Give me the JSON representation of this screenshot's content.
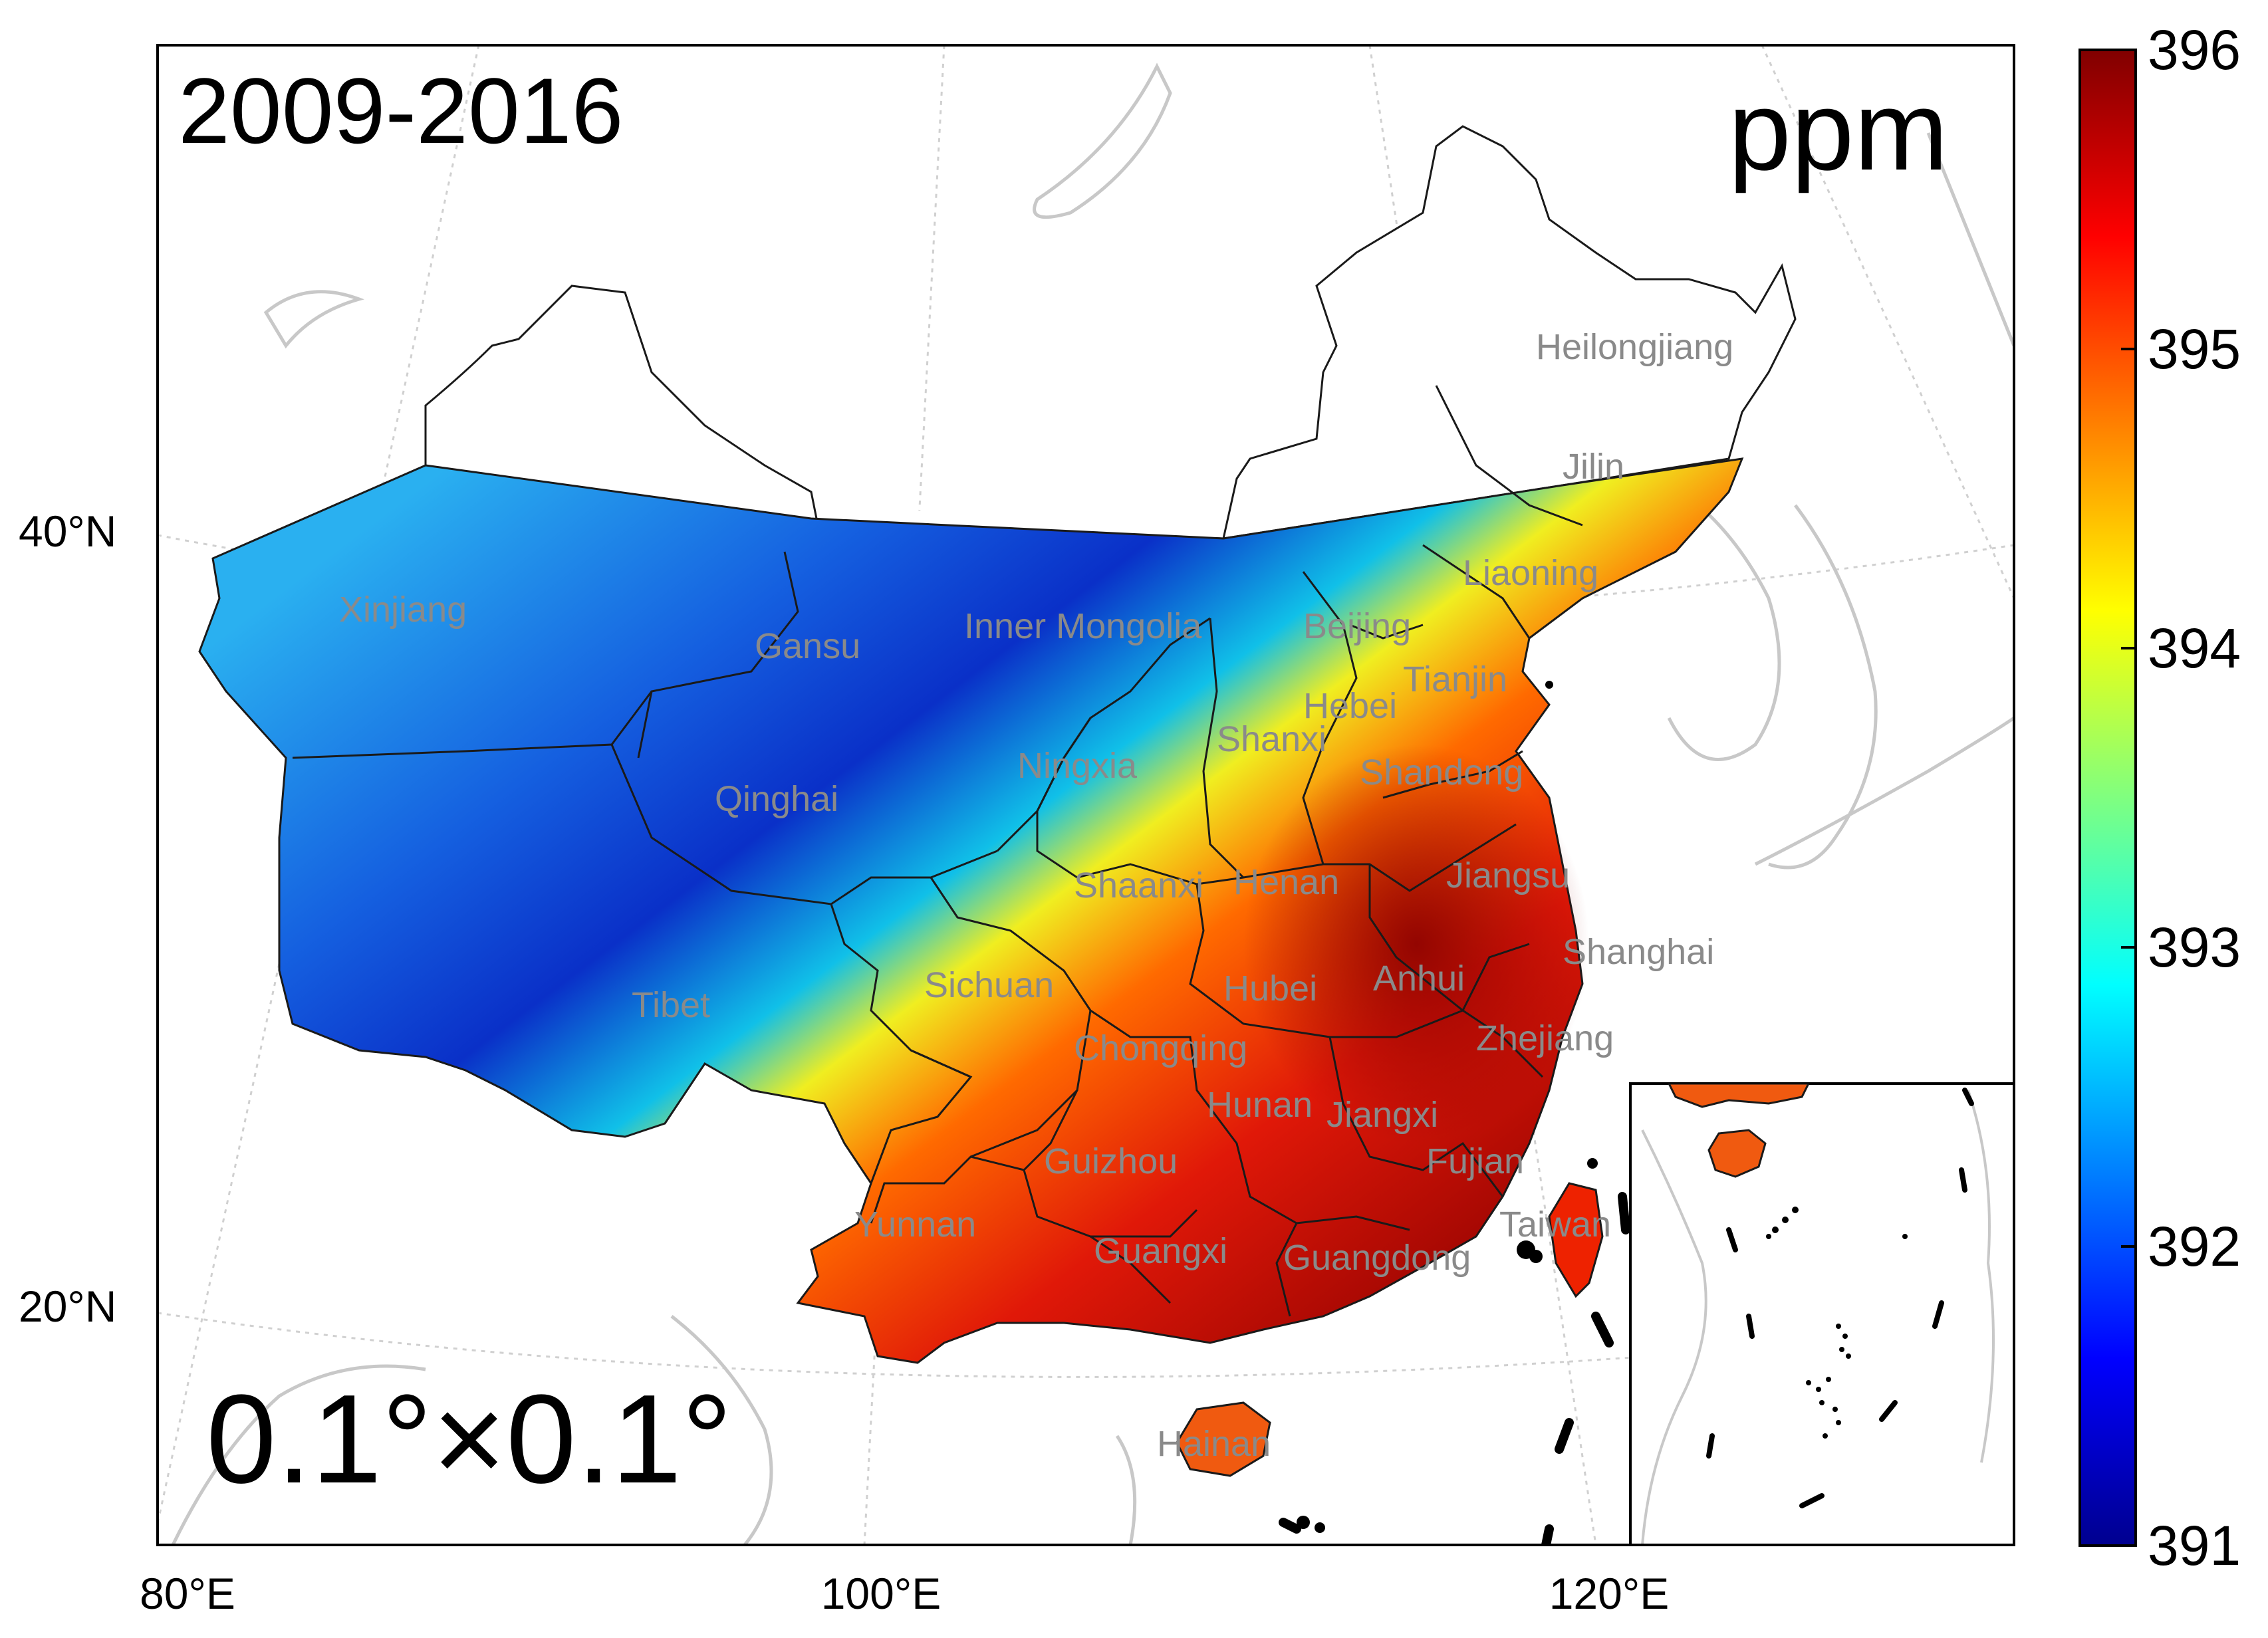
{
  "map": {
    "period_label": "2009-2016",
    "unit_label": "ppm",
    "resolution_label": "0.1°×0.1°"
  },
  "axes": {
    "lat_labels": [
      "40°N",
      "20°N"
    ],
    "lon_labels": [
      "80°E",
      "100°E",
      "120°E"
    ]
  },
  "colorbar": {
    "min": 391,
    "max": 396,
    "tick_labels": [
      "396",
      "395",
      "394",
      "393",
      "392",
      "391"
    ],
    "colormap": "jet",
    "colors": [
      "#00008f",
      "#0000ff",
      "#00ffff",
      "#ffff00",
      "#ff0000",
      "#800000"
    ]
  },
  "provinces": [
    "Heilongjiang",
    "Jilin",
    "Liaoning",
    "Xinjiang",
    "Gansu",
    "Inner Mongolia",
    "Beijing",
    "Tianjin",
    "Hebei",
    "Shanxi",
    "Ningxia",
    "Qinghai",
    "Shandong",
    "Shaanxi",
    "Henan",
    "Jiangsu",
    "Shanghai",
    "Sichuan",
    "Hubei",
    "Anhui",
    "Tibet",
    "Chongqing",
    "Zhejiang",
    "Hunan",
    "Jiangxi",
    "Guizhou",
    "Fujian",
    "Taiwan",
    "Yunnan",
    "Guangxi",
    "Guangdong",
    "Hainan"
  ]
}
